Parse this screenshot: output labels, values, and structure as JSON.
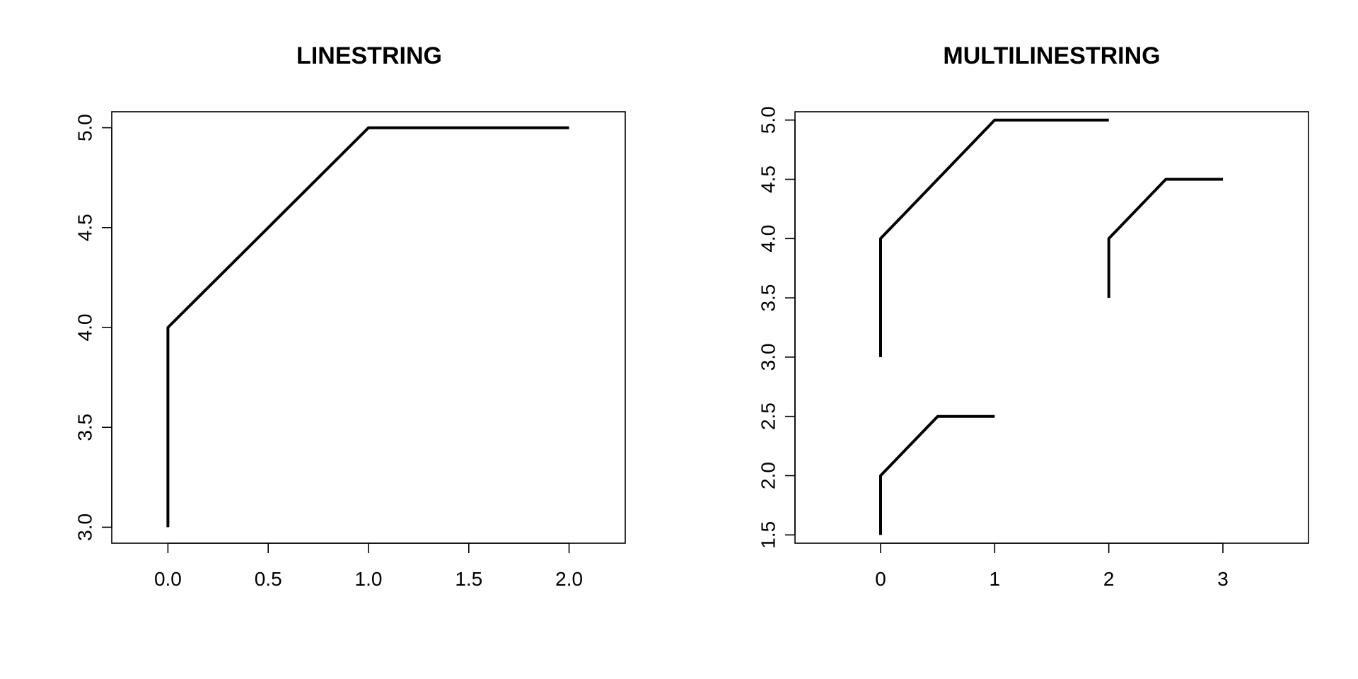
{
  "chart_data": [
    {
      "type": "line",
      "title": "LINESTRING",
      "xlabel": "",
      "ylabel": "",
      "xlim": [
        -0.28,
        2.28
      ],
      "ylim": [
        2.92,
        5.08
      ],
      "xticks": [
        0.0,
        0.5,
        1.0,
        1.5,
        2.0
      ],
      "xtick_labels": [
        "0.0",
        "0.5",
        "1.0",
        "1.5",
        "2.0"
      ],
      "yticks": [
        3.0,
        3.5,
        4.0,
        4.5,
        5.0
      ],
      "ytick_labels": [
        "3.0",
        "3.5",
        "4.0",
        "4.5",
        "5.0"
      ],
      "grid": false,
      "legend": "none",
      "line_color": "#000000",
      "series": [
        {
          "x": [
            0,
            0,
            1,
            2
          ],
          "y": [
            3,
            4,
            5,
            5
          ]
        }
      ]
    },
    {
      "type": "line",
      "title": "MULTILINESTRING",
      "xlabel": "",
      "ylabel": "",
      "xlim": [
        -0.75,
        3.75
      ],
      "ylim": [
        1.43,
        5.07
      ],
      "xticks": [
        0,
        1,
        2,
        3
      ],
      "xtick_labels": [
        "0",
        "1",
        "2",
        "3"
      ],
      "yticks": [
        1.5,
        2.0,
        2.5,
        3.0,
        3.5,
        4.0,
        4.5,
        5.0
      ],
      "ytick_labels": [
        "1.5",
        "2.0",
        "2.5",
        "3.0",
        "3.5",
        "4.0",
        "4.5",
        "5.0"
      ],
      "grid": false,
      "legend": "none",
      "line_color": "#000000",
      "series": [
        {
          "x": [
            0,
            0,
            1,
            2
          ],
          "y": [
            3,
            4,
            5,
            5
          ]
        },
        {
          "x": [
            0,
            0,
            0.5,
            1
          ],
          "y": [
            1.5,
            2,
            2.5,
            2.5
          ]
        },
        {
          "x": [
            2,
            2,
            2.5,
            3
          ],
          "y": [
            3.5,
            4,
            4.5,
            4.5
          ]
        }
      ]
    }
  ]
}
